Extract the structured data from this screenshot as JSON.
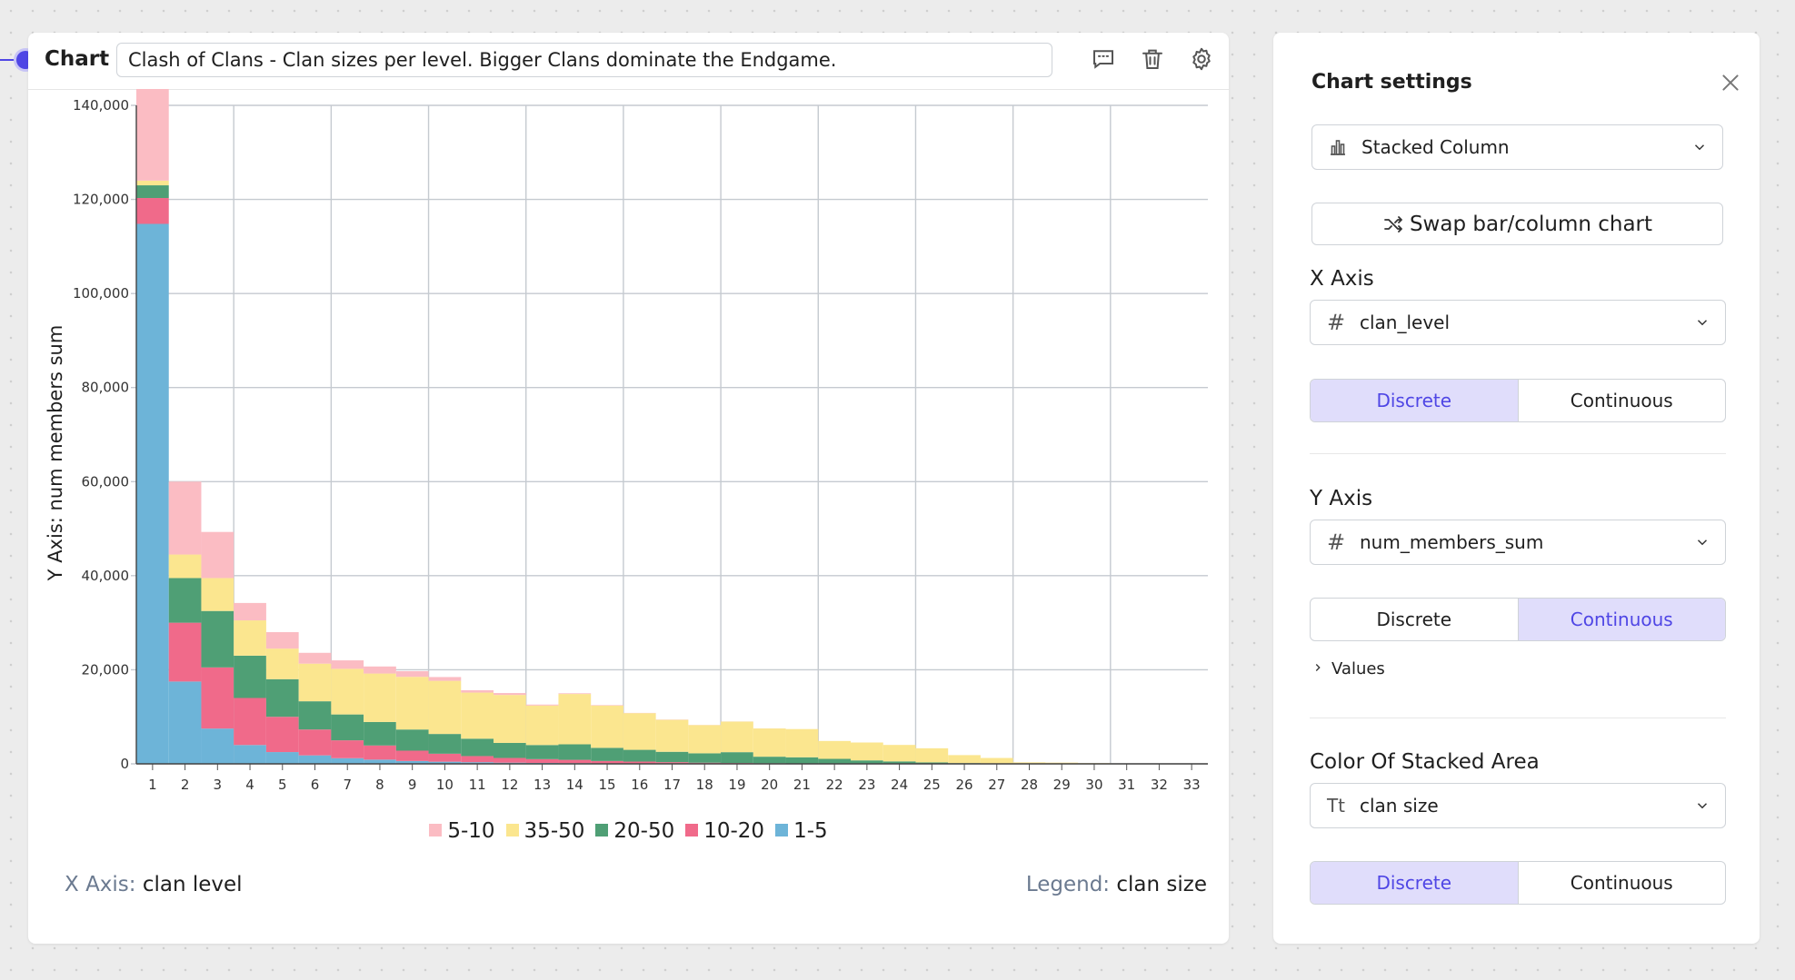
{
  "header": {
    "label": "Chart",
    "title": "Clash of Clans - Clan sizes per level. Bigger Clans dominate the Endgame."
  },
  "axis_captions": {
    "x_key": "X Axis:",
    "x_value": "clan level",
    "legend_key": "Legend:",
    "legend_value": "clan size"
  },
  "settings": {
    "title": "Chart settings",
    "chart_type": "Stacked Column",
    "swap_label": "Swap bar/column chart",
    "x_axis": {
      "label": "X Axis",
      "field": "clan_level",
      "discrete": "Discrete",
      "continuous": "Continuous",
      "active": "Discrete"
    },
    "y_axis": {
      "label": "Y Axis",
      "field": "num_members_sum",
      "discrete": "Discrete",
      "continuous": "Continuous",
      "active": "Continuous",
      "values_label": "Values"
    },
    "color": {
      "label": "Color Of Stacked Area",
      "field": "clan size",
      "discrete": "Discrete",
      "continuous": "Continuous",
      "active": "Discrete"
    }
  },
  "colors": {
    "accent": "#4f46e5",
    "1-5": "#6db4d8",
    "10-20": "#f06a8a",
    "20-50": "#4f9f75",
    "35-50": "#fbe68f",
    "5-10": "#fbbcc3"
  },
  "chart_data": {
    "type": "bar",
    "stacked": true,
    "ylabel": "Y Axis: num members sum",
    "ylim": [
      0,
      140000
    ],
    "yticks": [
      "0",
      "20,000",
      "40,000",
      "60,000",
      "80,000",
      "100,000",
      "120,000",
      "140,000"
    ],
    "grid": true,
    "legend_position": "bottom",
    "legend_order": [
      "5-10",
      "35-50",
      "20-50",
      "10-20",
      "1-5"
    ],
    "categories": [
      "1",
      "2",
      "3",
      "4",
      "5",
      "6",
      "7",
      "8",
      "9",
      "10",
      "11",
      "12",
      "13",
      "14",
      "15",
      "16",
      "17",
      "18",
      "19",
      "20",
      "21",
      "22",
      "23",
      "24",
      "25",
      "26",
      "27",
      "28",
      "29",
      "30",
      "31",
      "32",
      "33"
    ],
    "series": [
      {
        "name": "1-5",
        "values": [
          114800,
          17500,
          7500,
          4000,
          2500,
          1800,
          1200,
          900,
          600,
          450,
          350,
          250,
          200,
          150,
          100,
          80,
          60,
          40,
          30,
          20,
          15,
          10,
          5,
          0,
          0,
          0,
          0,
          0,
          0,
          0,
          0,
          0,
          0
        ]
      },
      {
        "name": "10-20",
        "values": [
          5500,
          12500,
          13000,
          10000,
          7500,
          5500,
          3800,
          3000,
          2200,
          1700,
          1300,
          1000,
          800,
          700,
          500,
          400,
          300,
          200,
          150,
          100,
          80,
          50,
          30,
          20,
          10,
          5,
          0,
          0,
          0,
          0,
          0,
          0,
          0
        ]
      },
      {
        "name": "20-50",
        "values": [
          2700,
          9500,
          12000,
          9000,
          8000,
          6000,
          5500,
          5000,
          4500,
          4200,
          3700,
          3200,
          3000,
          3300,
          2800,
          2500,
          2200,
          2000,
          2300,
          1400,
          1300,
          1000,
          700,
          500,
          300,
          150,
          50,
          20,
          10,
          0,
          0,
          0,
          0
        ]
      },
      {
        "name": "35-50",
        "values": [
          1000,
          5000,
          7000,
          7500,
          6500,
          8000,
          9700,
          10300,
          11200,
          11300,
          9800,
          10200,
          8400,
          10700,
          9000,
          7800,
          6800,
          6000,
          6500,
          6000,
          6000,
          3800,
          3800,
          3500,
          3000,
          1700,
          1200,
          300,
          250,
          150,
          50,
          20,
          0
        ]
      },
      {
        "name": "5-10",
        "values": [
          19800,
          15500,
          9800,
          3700,
          3500,
          2300,
          1800,
          1500,
          1200,
          800,
          500,
          400,
          200,
          150,
          100,
          50,
          50,
          30,
          20,
          10,
          0,
          0,
          0,
          0,
          0,
          0,
          0,
          0,
          0,
          0,
          0,
          0,
          0
        ]
      }
    ]
  }
}
